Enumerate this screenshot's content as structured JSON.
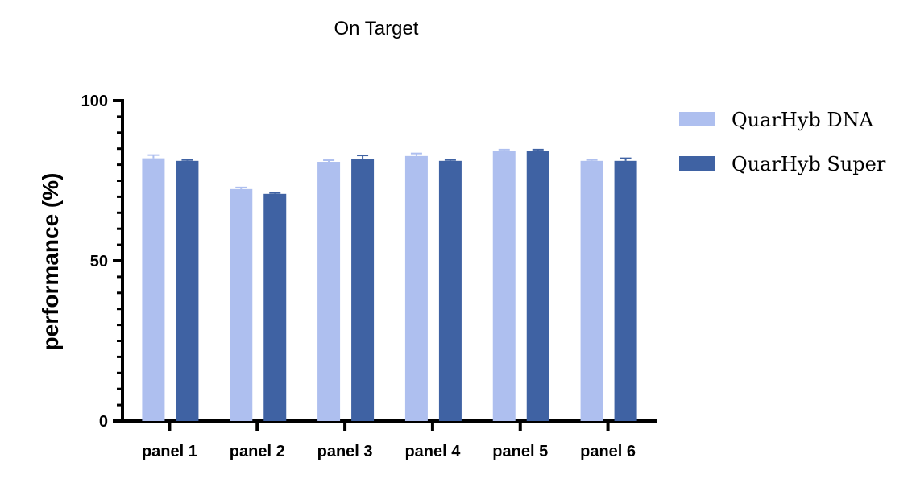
{
  "chart_data": {
    "type": "bar",
    "title": "On Target",
    "xlabel": "",
    "ylabel": "performance (%)",
    "ylim": [
      0,
      100
    ],
    "yticks": [
      0,
      50,
      100
    ],
    "yticks_labels": [
      "0",
      "50",
      "100"
    ],
    "grid": false,
    "legend_position": "right",
    "categories": [
      "panel 1",
      "panel 2",
      "panel 3",
      "panel 4",
      "panel 5",
      "panel 6"
    ],
    "series": [
      {
        "name": "QuarHyb DNA",
        "color": "#aebfef",
        "values": [
          82.0,
          72.4,
          80.9,
          82.7,
          84.4,
          81.2
        ],
        "errors": [
          1.0,
          0.5,
          0.5,
          0.8,
          0.3,
          0.3
        ]
      },
      {
        "name": "QuarHyb Super",
        "color": "#3f62a3",
        "values": [
          81.2,
          70.9,
          81.9,
          81.2,
          84.4,
          81.2
        ],
        "errors": [
          0.3,
          0.3,
          1.0,
          0.3,
          0.3,
          0.8
        ]
      }
    ]
  }
}
